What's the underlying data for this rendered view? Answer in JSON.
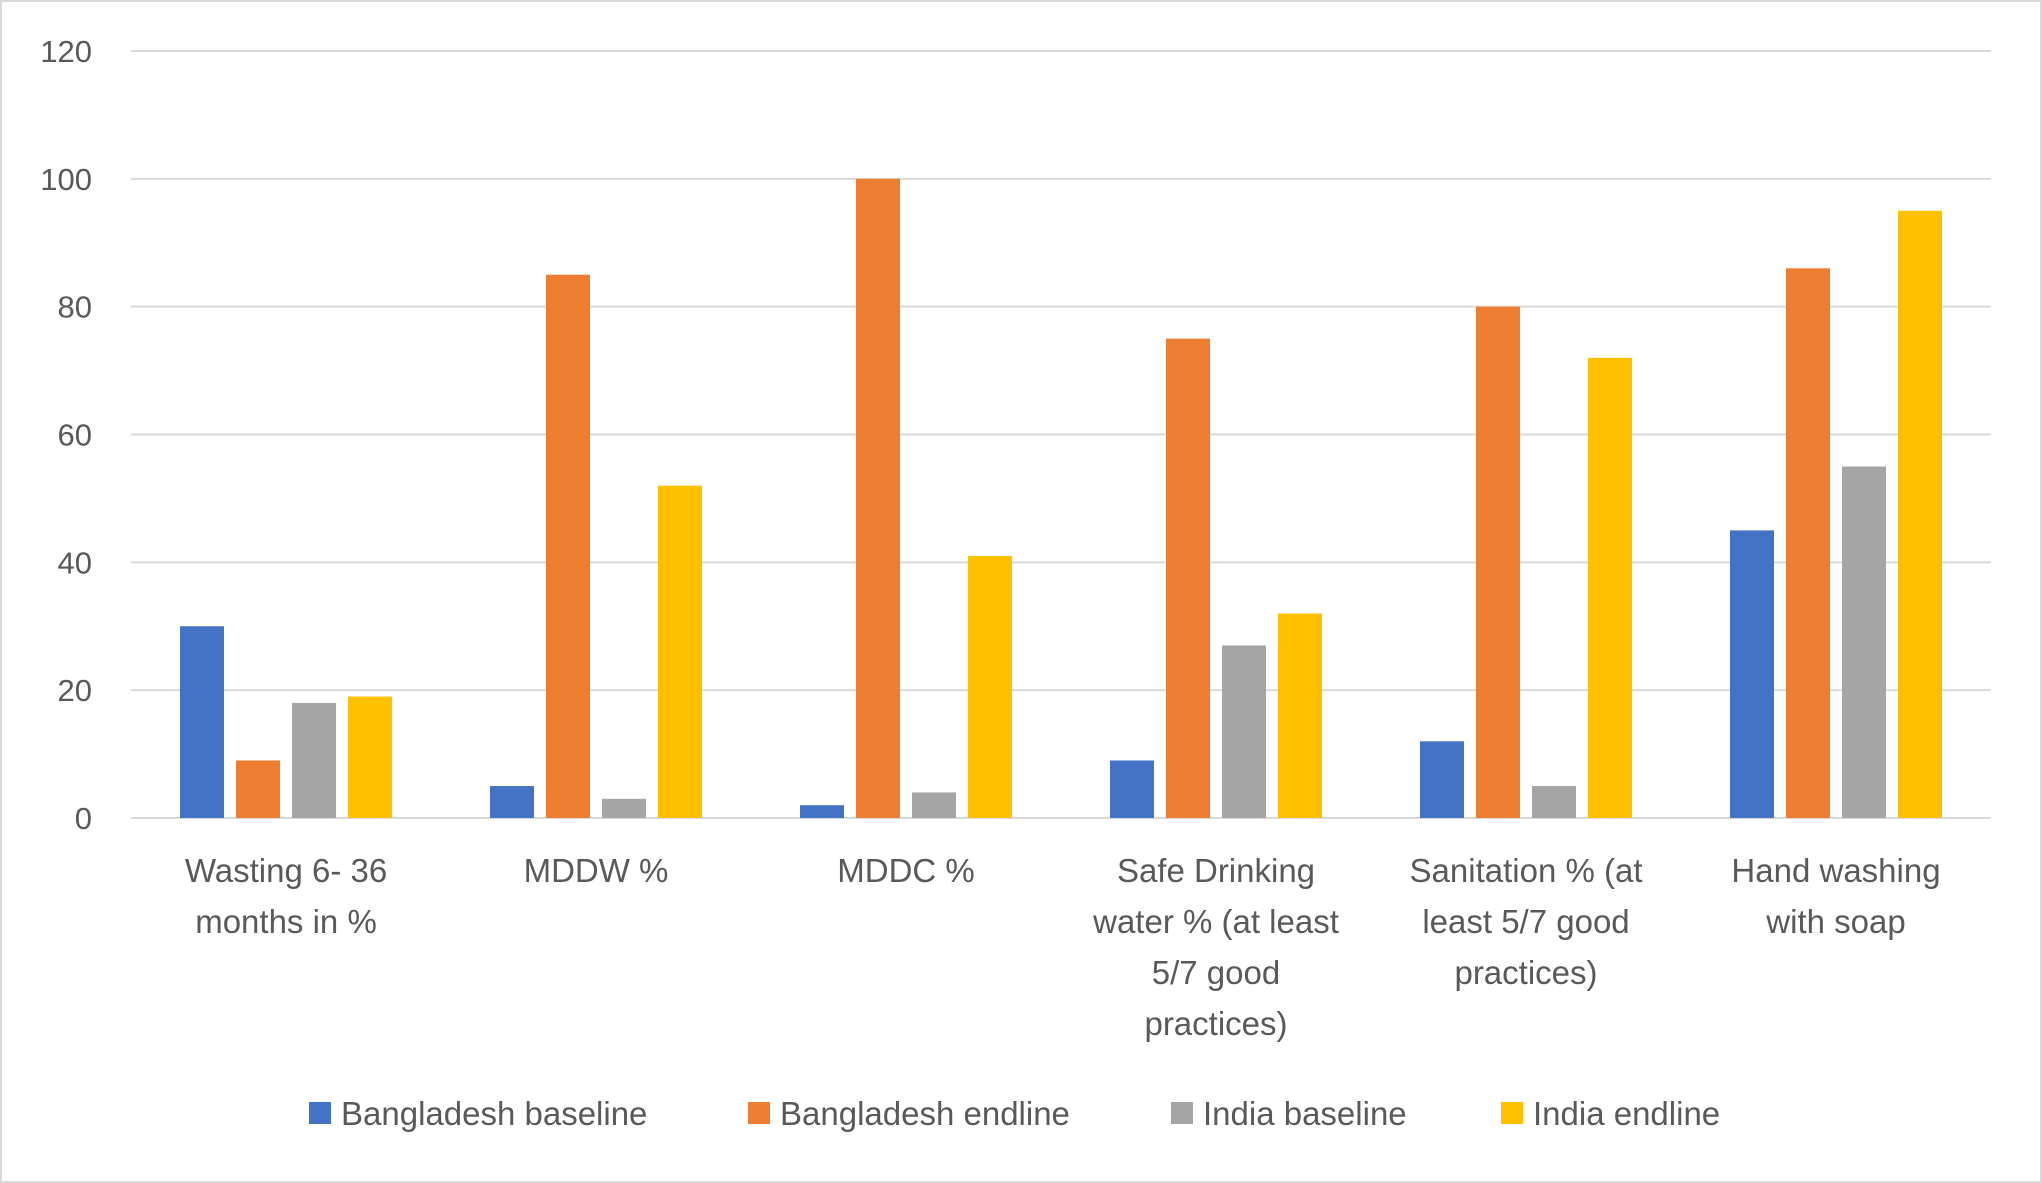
{
  "chart_data": {
    "type": "bar",
    "title": "",
    "xlabel": "",
    "ylabel": "",
    "ylim": [
      0,
      120
    ],
    "yticks": [
      0,
      20,
      40,
      60,
      80,
      100,
      120
    ],
    "grid": true,
    "legend_position": "bottom",
    "categories": [
      [
        "Wasting 6- 36",
        "months in %"
      ],
      [
        "MDDW %"
      ],
      [
        "MDDC %"
      ],
      [
        "Safe Drinking",
        "water % (at least",
        "5/7 good",
        "practices)"
      ],
      [
        "Sanitation % (at",
        "least 5/7 good",
        "practices)"
      ],
      [
        "Hand washing",
        "with soap"
      ]
    ],
    "series": [
      {
        "name": "Bangladesh baseline",
        "color": "#4472C4",
        "values": [
          30,
          5,
          2,
          9,
          12,
          45
        ]
      },
      {
        "name": "Bangladesh endline",
        "color": "#ED7D31",
        "values": [
          9,
          85,
          100,
          75,
          80,
          86
        ]
      },
      {
        "name": "India baseline",
        "color": "#A5A5A5",
        "values": [
          18,
          3,
          4,
          27,
          5,
          55
        ]
      },
      {
        "name": "India endline",
        "color": "#FFC000",
        "values": [
          19,
          52,
          41,
          32,
          72,
          95
        ]
      }
    ]
  }
}
